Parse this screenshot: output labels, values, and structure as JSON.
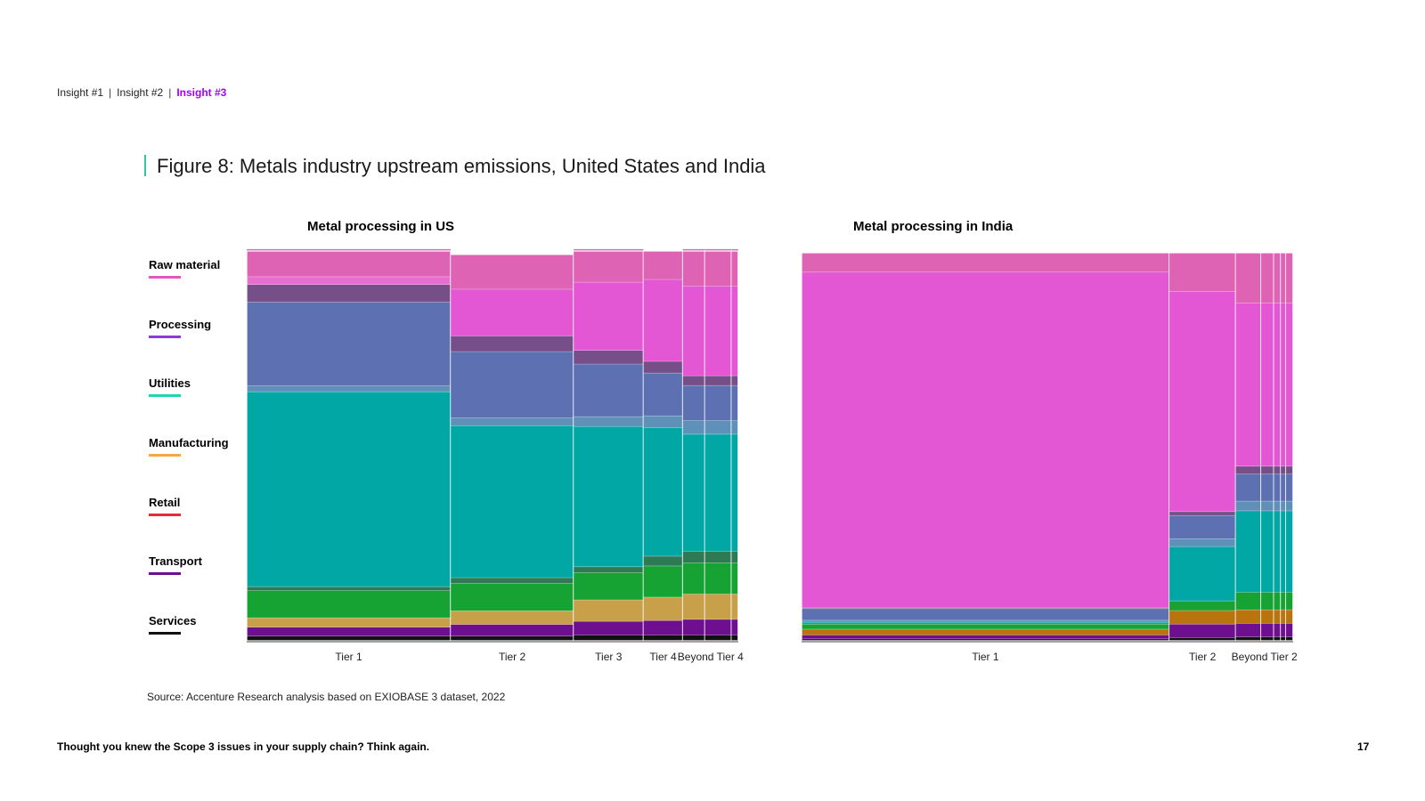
{
  "breadcrumb": {
    "items": [
      "Insight #1",
      "Insight #2",
      "Insight #3"
    ],
    "separator": "|",
    "active_index": 2,
    "active_color": "#a100ff"
  },
  "figure": {
    "title": "Figure 8: Metals industry upstream emissions, United States and India",
    "accent_color": "#2ec7a0"
  },
  "legend": [
    {
      "label": "Raw material",
      "color": "#e056c4"
    },
    {
      "label": "Processing",
      "color": "#8c3bd6"
    },
    {
      "label": "Utilities",
      "color": "#22d3b0"
    },
    {
      "label": "Manufacturing",
      "color": "#f4a640"
    },
    {
      "label": "Retail",
      "color": "#e8283c"
    },
    {
      "label": "Transport",
      "color": "#6e0f8f"
    },
    {
      "label": "Services",
      "color": "#111111"
    }
  ],
  "chart_data": [
    {
      "type": "marimekko",
      "title": "Metal processing in US",
      "categories": [
        "Tier 1",
        "Tier 2",
        "Tier 3",
        "Tier 4",
        "Beyond Tier 4"
      ],
      "widths": [
        41.5,
        25,
        14.2,
        8,
        11.3
      ],
      "beyond_subcolumns": [
        4.5,
        5.4,
        1.4
      ],
      "segment_order_bottom_to_top": [
        "Services",
        "Transport",
        "Manufacturing",
        "Retail",
        "Utilities",
        "Processing",
        "Raw material"
      ],
      "segments": [
        {
          "label": "Services",
          "color": "#111111",
          "values": [
            1.2,
            1.2,
            1.5,
            1.5,
            1.5
          ]
        },
        {
          "label": "Transport",
          "color": "#6e0f8f",
          "values": [
            2.3,
            3.0,
            3.5,
            3.7,
            4.0
          ]
        },
        {
          "label": "Manufacturing",
          "color": "#c9a04a",
          "values": [
            2.4,
            3.5,
            5.5,
            6.0,
            6.5
          ]
        },
        {
          "label": "Utilities (green)",
          "color": "#17a334",
          "values": [
            7.0,
            7.0,
            7.0,
            8.0,
            8.0
          ]
        },
        {
          "label": "Utilities (dark)",
          "color": "#2e7a55",
          "values": [
            1.0,
            1.5,
            1.5,
            2.5,
            3.0
          ]
        },
        {
          "label": "Utilities",
          "color": "#00a7a5",
          "values": [
            50.0,
            39.0,
            36.0,
            33.0,
            30.0
          ]
        },
        {
          "label": "Processing (light)",
          "color": "#5e90b8",
          "values": [
            1.5,
            2.0,
            2.5,
            3.0,
            3.5
          ]
        },
        {
          "label": "Processing",
          "color": "#5c70b2",
          "values": [
            21.5,
            17.0,
            13.5,
            11.0,
            9.0
          ]
        },
        {
          "label": "Processing (dark)",
          "color": "#764f88",
          "values": [
            4.5,
            4.0,
            3.5,
            3.0,
            2.5
          ]
        },
        {
          "label": "Raw material",
          "color": "#e356d4",
          "values": [
            0.0,
            12.0,
            17.5,
            21.0,
            23.0
          ]
        },
        {
          "label": "Raw material (light)",
          "color": "#e66fd0",
          "values": [
            2.0,
            0.0,
            0.0,
            0.0,
            0.0
          ]
        },
        {
          "label": "Raw material (rose)",
          "color": "#df63b4",
          "values": [
            7.1,
            8.8,
            8.5,
            7.3,
            9.5
          ]
        }
      ],
      "ylim": [
        0,
        100
      ]
    },
    {
      "type": "marimekko",
      "title": "Metal processing in India",
      "categories": [
        "Tier 1",
        "Tier 2",
        "Beyond Tier 2"
      ],
      "widths": [
        74.8,
        13.5,
        11.7
      ],
      "beyond_subcolumns": [
        5.5,
        2.8,
        1.5,
        1.1,
        1.6
      ],
      "segment_order_bottom_to_top": [
        "Services",
        "Transport",
        "Manufacturing",
        "Retail",
        "Utilities",
        "Processing",
        "Raw material"
      ],
      "segments": [
        {
          "label": "Services",
          "color": "#111111",
          "values": [
            0.5,
            0.8,
            1.0
          ]
        },
        {
          "label": "Transport",
          "color": "#6e0f8f",
          "values": [
            1.0,
            3.5,
            3.5
          ]
        },
        {
          "label": "Manufacturing",
          "color": "#b9740d",
          "values": [
            1.5,
            3.5,
            3.5
          ]
        },
        {
          "label": "Utilities (green)",
          "color": "#17a334",
          "values": [
            1.3,
            2.5,
            4.5
          ]
        },
        {
          "label": "Utilities",
          "color": "#00a7a5",
          "values": [
            0.5,
            14.0,
            21.0
          ]
        },
        {
          "label": "Processing (light)",
          "color": "#5e90b8",
          "values": [
            0.5,
            2.0,
            2.5
          ]
        },
        {
          "label": "Processing",
          "color": "#5c70b2",
          "values": [
            3.0,
            6.0,
            7.0
          ]
        },
        {
          "label": "Processing (dark)",
          "color": "#764f88",
          "values": [
            0.2,
            1.0,
            2.0
          ]
        },
        {
          "label": "Raw material",
          "color": "#e356d4",
          "values": [
            86.5,
            56.7,
            42.0
          ]
        },
        {
          "label": "Raw material (rose)",
          "color": "#df63b4",
          "values": [
            5.0,
            10.0,
            13.0
          ]
        }
      ],
      "ylim": [
        0,
        100
      ]
    }
  ],
  "source": "Source: Accenture Research analysis based on EXIOBASE 3 dataset, 2022",
  "footer": {
    "text": "Thought you knew the Scope 3 issues in your supply chain? Think again.",
    "page_number": "17"
  }
}
